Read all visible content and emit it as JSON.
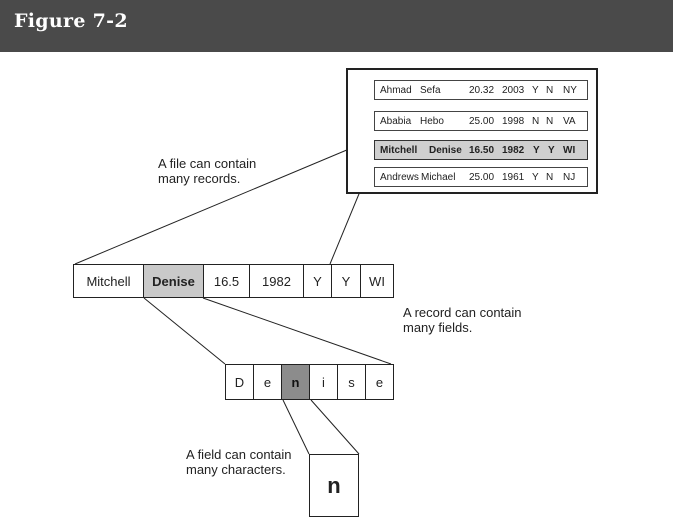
{
  "header": {
    "title": "Figure  7-2"
  },
  "file": {
    "records": [
      {
        "first": "Ahmad",
        "last": "Sefa",
        "amount": "20.32",
        "year": "2003",
        "f1": "Y",
        "f2": "N",
        "state": "NY",
        "highlighted": false
      },
      {
        "first": "Ababia",
        "last": "Hebo",
        "amount": "25.00",
        "year": "1998",
        "f1": "N",
        "f2": "N",
        "state": "VA",
        "highlighted": false
      },
      {
        "first": "Mitchell",
        "last": "Denise",
        "amount": "16.50",
        "year": "1982",
        "f1": "Y",
        "f2": "Y",
        "state": "WI",
        "highlighted": true
      },
      {
        "first": "Andrews",
        "last": "Michael",
        "amount": "25.00",
        "year": "1961",
        "f1": "Y",
        "f2": "N",
        "state": "NJ",
        "highlighted": false
      }
    ]
  },
  "record": {
    "fields": [
      {
        "value": "Mitchell",
        "highlighted": false
      },
      {
        "value": "Denise",
        "highlighted": true
      },
      {
        "value": "16.5",
        "highlighted": false
      },
      {
        "value": "1982",
        "highlighted": false
      },
      {
        "value": "Y",
        "highlighted": false
      },
      {
        "value": "Y",
        "highlighted": false
      },
      {
        "value": "WI",
        "highlighted": false
      }
    ]
  },
  "field": {
    "characters": [
      {
        "value": "D",
        "highlighted": false
      },
      {
        "value": "e",
        "highlighted": false
      },
      {
        "value": "n",
        "highlighted": true
      },
      {
        "value": "i",
        "highlighted": false
      },
      {
        "value": "s",
        "highlighted": false
      },
      {
        "value": "e",
        "highlighted": false
      }
    ]
  },
  "character": {
    "value": "n"
  },
  "captions": {
    "file": {
      "line1": "A file can contain",
      "line2": "many records."
    },
    "record": {
      "line1": "A record can contain",
      "line2": "many fields."
    },
    "field": {
      "line1": "A field can contain",
      "line2": "many characters."
    }
  }
}
